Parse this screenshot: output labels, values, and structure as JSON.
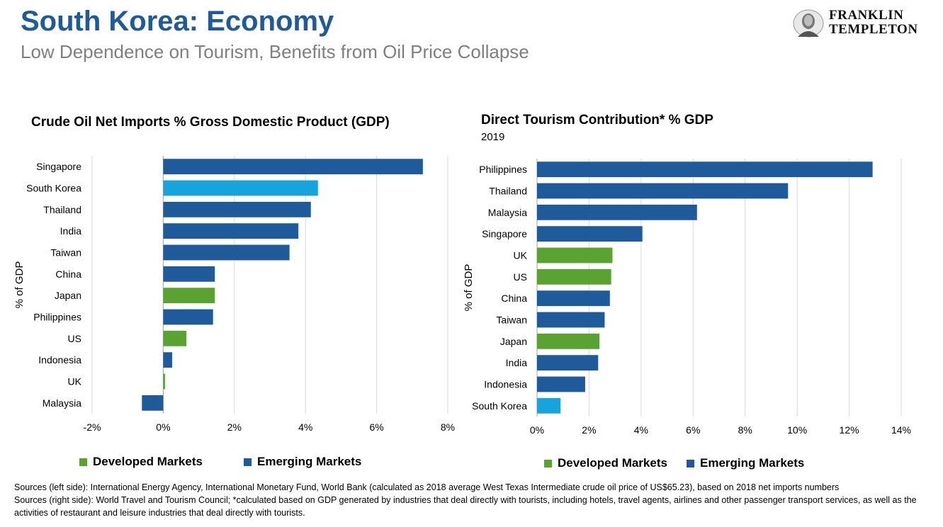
{
  "header": {
    "title": "South Korea: Economy",
    "subtitle": "Low Dependence on Tourism, Benefits from Oil Price Collapse"
  },
  "logo": {
    "line1": "FRANKLIN",
    "line2": "TEMPLETON"
  },
  "colors": {
    "developed": "#5aa332",
    "emerging": "#1f5a9a",
    "highlight": "#19a3dc",
    "title": "#1f5a9a",
    "grid": "#d9d9d9"
  },
  "left": {
    "title": "Crude Oil Net Imports % Gross Domestic Product (GDP)",
    "ylabel": "% of GDP",
    "legend": {
      "developed": "Developed Markets",
      "emerging": "Emerging Markets"
    }
  },
  "right": {
    "title": "Direct Tourism Contribution* % GDP",
    "subtitle": "2019",
    "ylabel": "% of GDP",
    "legend": {
      "developed": "Developed Markets",
      "emerging": "Emerging Markets"
    }
  },
  "chart_data": [
    {
      "type": "bar",
      "orientation": "horizontal",
      "title": "Crude Oil Net Imports % Gross Domestic Product (GDP)",
      "ylabel": "% of GDP",
      "xlim": [
        -2,
        8
      ],
      "xticks": [
        "-2%",
        "0%",
        "2%",
        "4%",
        "6%",
        "8%"
      ],
      "xtick_values": [
        -2,
        0,
        2,
        4,
        6,
        8
      ],
      "grid": true,
      "categories": [
        "Singapore",
        "South Korea",
        "Thailand",
        "India",
        "Taiwan",
        "China",
        "Japan",
        "Philippines",
        "US",
        "Indonesia",
        "UK",
        "Malaysia"
      ],
      "values": [
        7.3,
        4.35,
        4.15,
        3.8,
        3.55,
        1.45,
        1.45,
        1.4,
        0.65,
        0.25,
        0.05,
        -0.6
      ],
      "groups": [
        "emerging",
        "highlight",
        "emerging",
        "emerging",
        "emerging",
        "emerging",
        "developed",
        "emerging",
        "developed",
        "emerging",
        "developed",
        "emerging"
      ]
    },
    {
      "type": "bar",
      "orientation": "horizontal",
      "title": "Direct Tourism Contribution* % GDP",
      "subtitle": "2019",
      "ylabel": "% of GDP",
      "xlim": [
        0,
        14
      ],
      "xticks": [
        "0%",
        "2%",
        "4%",
        "6%",
        "8%",
        "10%",
        "12%",
        "14%"
      ],
      "xtick_values": [
        0,
        2,
        4,
        6,
        8,
        10,
        12,
        14
      ],
      "grid": true,
      "categories": [
        "Philippines",
        "Thailand",
        "Malaysia",
        "Singapore",
        "UK",
        "US",
        "China",
        "Taiwan",
        "Japan",
        "India",
        "Indonesia",
        "South Korea"
      ],
      "values": [
        12.9,
        9.65,
        6.15,
        4.05,
        2.9,
        2.85,
        2.8,
        2.6,
        2.4,
        2.35,
        1.85,
        0.9
      ],
      "groups": [
        "emerging",
        "emerging",
        "emerging",
        "emerging",
        "developed",
        "developed",
        "emerging",
        "emerging",
        "developed",
        "emerging",
        "emerging",
        "highlight"
      ]
    }
  ],
  "sources": {
    "left": "Sources (left side): International Energy Agency, International Monetary Fund, World Bank (calculated as 2018 average West Texas Intermediate crude oil price of US$65.23), based on 2018 net imports numbers",
    "right": "Sources (right side): World Travel and Tourism Council; *calculated based on GDP generated by industries that deal directly with tourists, including hotels, travel agents, airlines and other passenger transport services, as well as the activities of restaurant and leisure industries that deal directly with tourists."
  }
}
